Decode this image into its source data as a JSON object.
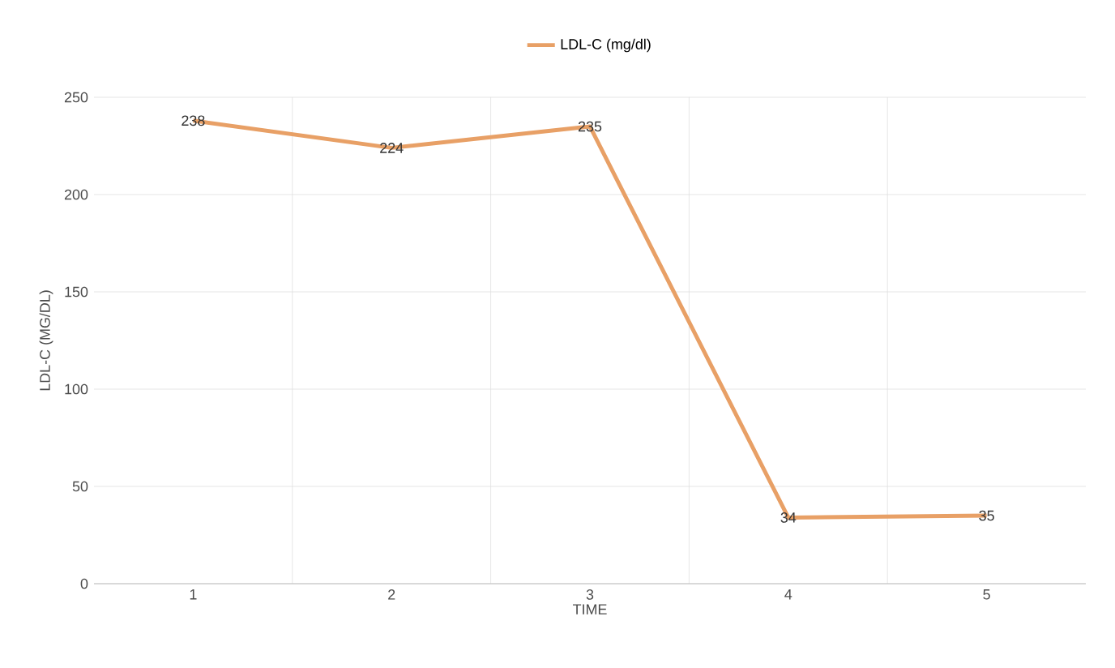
{
  "chart_data": {
    "type": "line",
    "categories": [
      "1",
      "2",
      "3",
      "4",
      "5"
    ],
    "series": [
      {
        "name": "LDL-C (mg/dl)",
        "color": "#e8a066",
        "values": [
          238,
          224,
          235,
          34,
          35
        ]
      }
    ],
    "xlabel": "TIME",
    "ylabel": "LDL-C (MG/DL)",
    "ylim": [
      0,
      250
    ],
    "yticks": [
      0,
      50,
      100,
      150,
      200,
      250
    ],
    "grid": true,
    "legend": "top",
    "data_labels": true,
    "line_style": "solid"
  }
}
